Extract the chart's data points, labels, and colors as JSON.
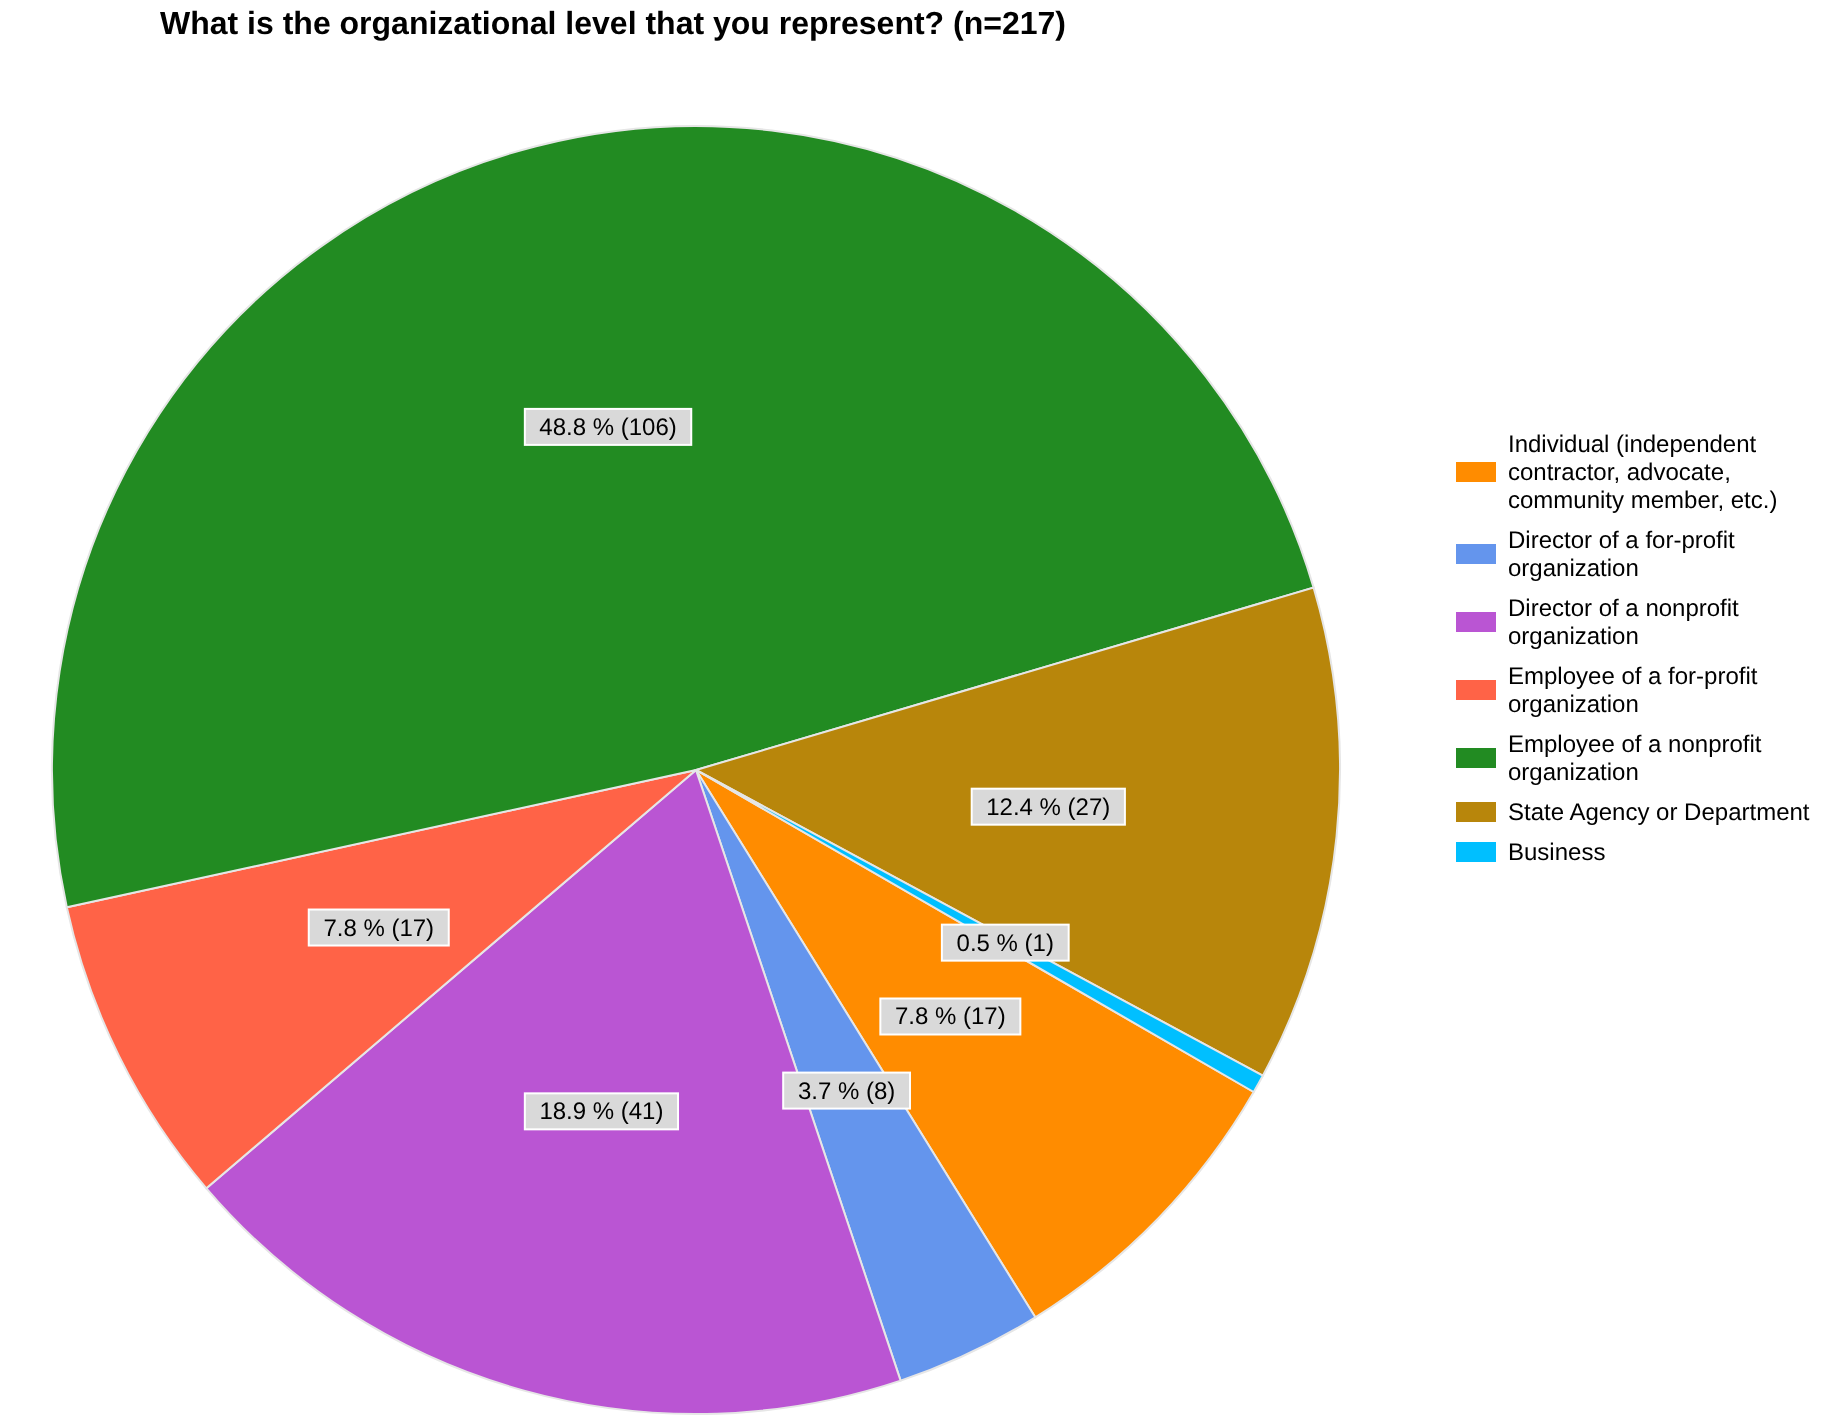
{
  "chart_data": {
    "type": "pie",
    "title": "What is the organizational level that you represent? (n=217)",
    "categories": [
      "Individual (independent contractor, advocate, community member, etc.)",
      "Director of a for-profit organization",
      "Director of a nonprofit organization",
      "Employee of a for-profit organization",
      "Employee of a nonprofit organization",
      "State Agency or Department",
      "Business"
    ],
    "values": [
      17,
      8,
      41,
      17,
      106,
      27,
      1
    ],
    "colors": [
      "#ff8c00",
      "#6495ed",
      "#ba55d3",
      "#ff6347",
      "#228b22",
      "#b8860b",
      "#00bfff"
    ],
    "value_labels": [
      "7.8 % (17)",
      "3.7 % (8)",
      "18.9 % (41)",
      "7.8 % (17)",
      "48.8 % (106)",
      "12.4 % (27)",
      "0.5 % (1)"
    ],
    "legend": "right"
  }
}
